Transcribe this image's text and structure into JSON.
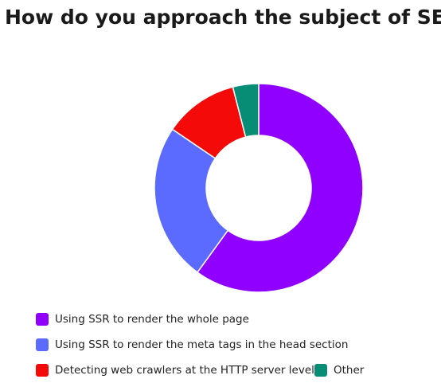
{
  "chart_data": {
    "type": "donut",
    "title": "How do you approach the subject of SEO?",
    "categories": [
      "Using SSR to render the whole page",
      "Using SSR to render the meta tags in the head section",
      "Detecting web crawlers at the HTTP server level",
      "Other"
    ],
    "values": [
      60,
      24.5,
      11.5,
      4
    ],
    "colors": [
      "#8f00ff",
      "#5c6bff",
      "#f50a0a",
      "#078c76"
    ]
  }
}
